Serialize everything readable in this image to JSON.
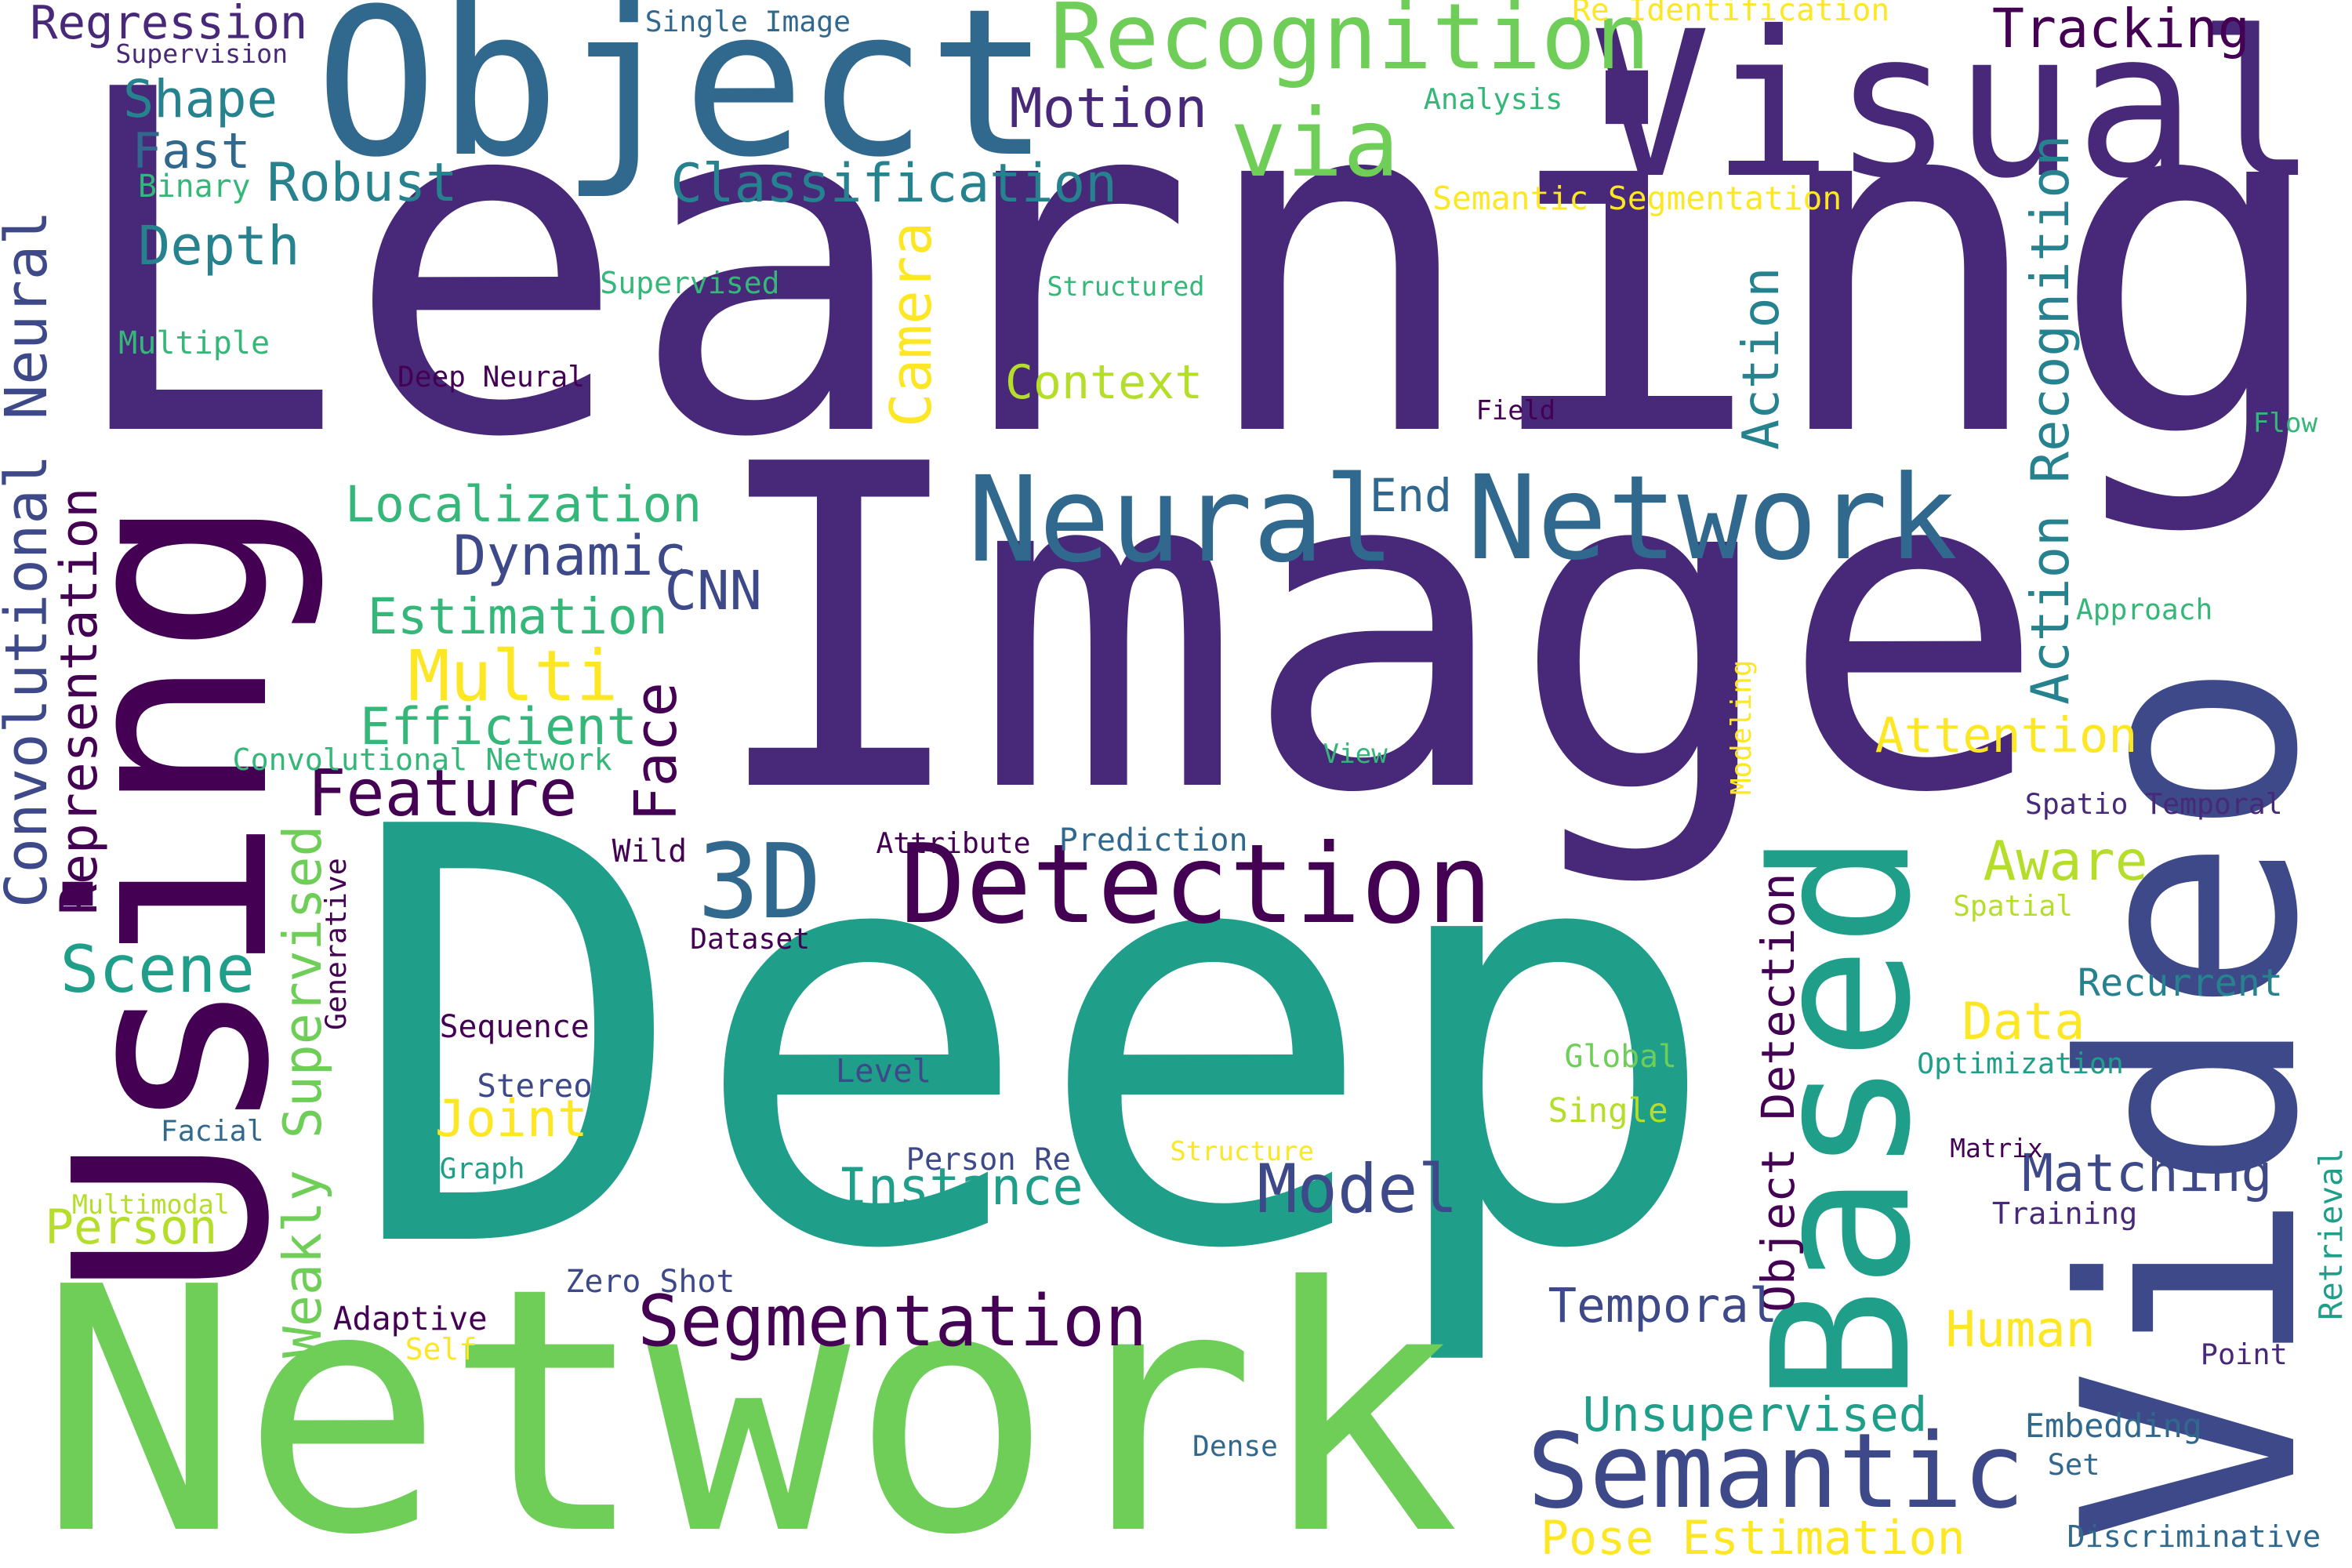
{
  "palette": {
    "v1": "#440154",
    "v2": "#482878",
    "v3": "#3e4989",
    "v4": "#31688e",
    "v5": "#26828e",
    "v6": "#1f9e89",
    "v7": "#35b779",
    "v8": "#6ece58",
    "v9": "#b5de2b",
    "v10": "#fde725"
  },
  "words": [
    {
      "text": "Learning",
      "color": "v2"
    },
    {
      "text": "Deep",
      "color": "v6"
    },
    {
      "text": "Image",
      "color": "v2"
    },
    {
      "text": "Network",
      "color": "v8"
    },
    {
      "text": "Visual",
      "color": "v2"
    },
    {
      "text": "Object",
      "color": "v4"
    },
    {
      "text": "Using",
      "color": "v1"
    },
    {
      "text": "Video",
      "color": "v3"
    },
    {
      "text": "Based",
      "color": "v6"
    },
    {
      "text": "Neural",
      "color": "v4"
    },
    {
      "text": "Network",
      "color": "v4"
    },
    {
      "text": "Recognition",
      "color": "v8"
    },
    {
      "text": "Detection",
      "color": "v1"
    },
    {
      "text": "Semantic",
      "color": "v3"
    },
    {
      "text": "via",
      "color": "v8"
    },
    {
      "text": "Segmentation",
      "color": "v1"
    },
    {
      "text": "3D",
      "color": "v4"
    },
    {
      "text": "Convolutional Neural",
      "color": "v3"
    },
    {
      "text": "Feature",
      "color": "v1"
    },
    {
      "text": "Scene",
      "color": "v6"
    },
    {
      "text": "Model",
      "color": "v3"
    },
    {
      "text": "Tracking",
      "color": "v1"
    },
    {
      "text": "Classification",
      "color": "v5"
    },
    {
      "text": "Instance",
      "color": "v6"
    },
    {
      "text": "Matching",
      "color": "v3"
    },
    {
      "text": "Multi",
      "color": "v10"
    },
    {
      "text": "Localization",
      "color": "v7"
    },
    {
      "text": "Estimation",
      "color": "v7"
    },
    {
      "text": "Efficient",
      "color": "v7"
    },
    {
      "text": "Dynamic",
      "color": "v3"
    },
    {
      "text": "Motion",
      "color": "v2"
    },
    {
      "text": "Shape",
      "color": "v5"
    },
    {
      "text": "Robust",
      "color": "v5"
    },
    {
      "text": "Depth",
      "color": "v5"
    },
    {
      "text": "Fast",
      "color": "v4"
    },
    {
      "text": "Regression",
      "color": "v2"
    },
    {
      "text": "Context",
      "color": "v9"
    },
    {
      "text": "Camera",
      "color": "v10"
    },
    {
      "text": "Action",
      "color": "v5"
    },
    {
      "text": "Action Recognition",
      "color": "v5"
    },
    {
      "text": "Representation",
      "color": "v1"
    },
    {
      "text": "Face",
      "color": "v1"
    },
    {
      "text": "Weakly Supervised",
      "color": "v8"
    },
    {
      "text": "Attention",
      "color": "v10"
    },
    {
      "text": "Aware",
      "color": "v9"
    },
    {
      "text": "Recurrent",
      "color": "v5"
    },
    {
      "text": "Data",
      "color": "v10"
    },
    {
      "text": "Object Detection",
      "color": "v1"
    },
    {
      "text": "Joint",
      "color": "v10"
    },
    {
      "text": "Person",
      "color": "v9"
    },
    {
      "text": "Temporal",
      "color": "v3"
    },
    {
      "text": "Human",
      "color": "v10"
    },
    {
      "text": "Unsupervised",
      "color": "v6"
    },
    {
      "text": "Pose Estimation",
      "color": "v10"
    },
    {
      "text": "CNN",
      "color": "v3"
    },
    {
      "text": "End",
      "color": "v4"
    },
    {
      "text": "Single Image",
      "color": "v4"
    },
    {
      "text": "Supervision",
      "color": "v2"
    },
    {
      "text": "Binary",
      "color": "v7"
    },
    {
      "text": "Re Identification",
      "color": "v10"
    },
    {
      "text": "Analysis",
      "color": "v7"
    },
    {
      "text": "Semantic Segmentation",
      "color": "v10"
    },
    {
      "text": "Supervised",
      "color": "v7"
    },
    {
      "text": "Structured",
      "color": "v7"
    },
    {
      "text": "Multiple",
      "color": "v7"
    },
    {
      "text": "Deep Neural",
      "color": "v1"
    },
    {
      "text": "Field",
      "color": "v1"
    },
    {
      "text": "Flow",
      "color": "v7"
    },
    {
      "text": "Approach",
      "color": "v7"
    },
    {
      "text": "Convolutional Network",
      "color": "v7"
    },
    {
      "text": "View",
      "color": "v7"
    },
    {
      "text": "Modeling",
      "color": "v10"
    },
    {
      "text": "Spatio Temporal",
      "color": "v2"
    },
    {
      "text": "Attribute",
      "color": "v1"
    },
    {
      "text": "Prediction",
      "color": "v4"
    },
    {
      "text": "Wild",
      "color": "v1"
    },
    {
      "text": "Dataset",
      "color": "v1"
    },
    {
      "text": "Generative",
      "color": "v1"
    },
    {
      "text": "Spatial",
      "color": "v9"
    },
    {
      "text": "Sequence",
      "color": "v1"
    },
    {
      "text": "Stereo",
      "color": "v3"
    },
    {
      "text": "Level",
      "color": "v3"
    },
    {
      "text": "Global",
      "color": "v8"
    },
    {
      "text": "Single",
      "color": "v9"
    },
    {
      "text": "Optimization",
      "color": "v6"
    },
    {
      "text": "Facial",
      "color": "v4"
    },
    {
      "text": "Graph",
      "color": "v6"
    },
    {
      "text": "Person Re",
      "color": "v3"
    },
    {
      "text": "Structure",
      "color": "v10"
    },
    {
      "text": "Matrix",
      "color": "v1"
    },
    {
      "text": "Multimodal",
      "color": "v9"
    },
    {
      "text": "Training",
      "color": "v2"
    },
    {
      "text": "Retrieval",
      "color": "v6"
    },
    {
      "text": "Zero Shot",
      "color": "v3"
    },
    {
      "text": "Adaptive",
      "color": "v1"
    },
    {
      "text": "Self",
      "color": "v10"
    },
    {
      "text": "Point",
      "color": "v2"
    },
    {
      "text": "Embedding",
      "color": "v4"
    },
    {
      "text": "Set",
      "color": "v4"
    },
    {
      "text": "Dense",
      "color": "v4"
    },
    {
      "text": "Discriminative",
      "color": "v4"
    }
  ]
}
